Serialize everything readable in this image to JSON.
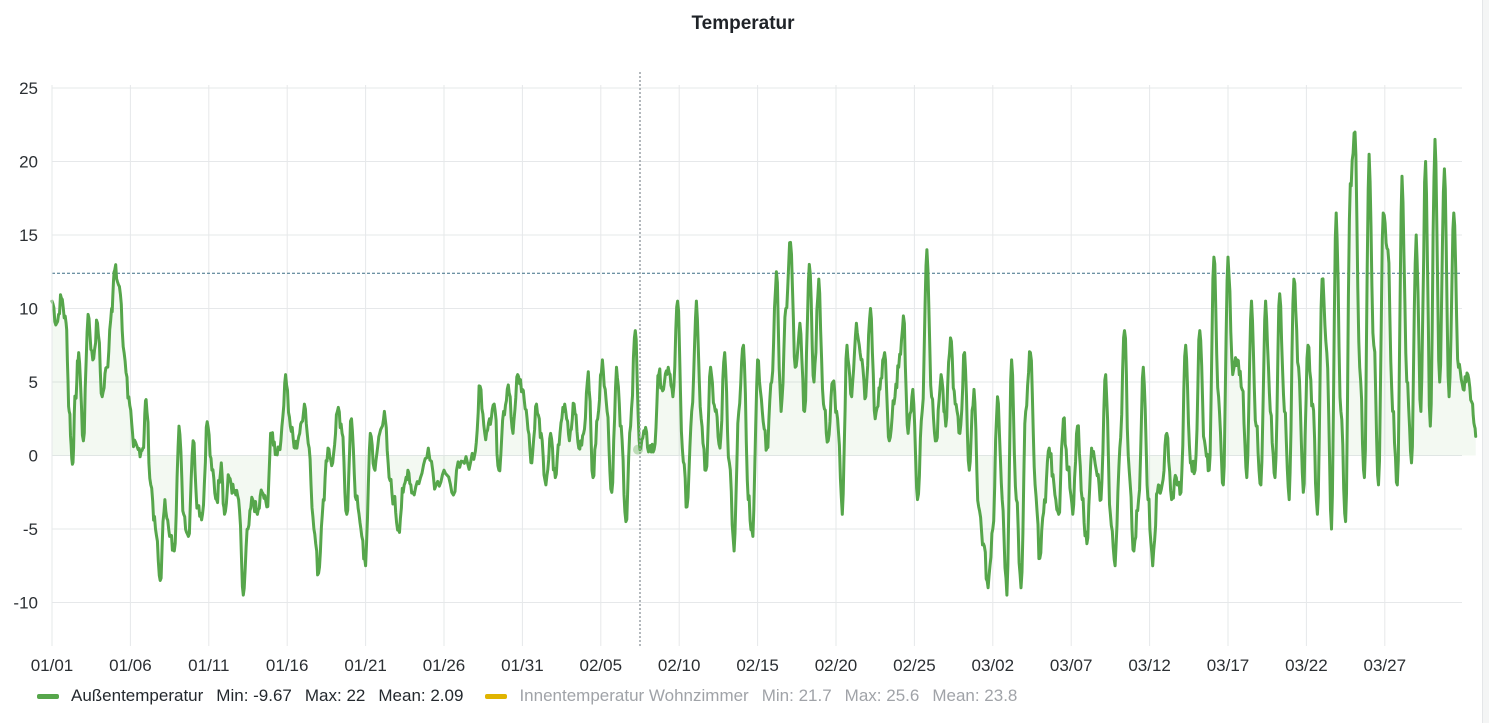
{
  "panel": {
    "title": "Temperatur"
  },
  "legend": [
    {
      "name": "Außentemperatur",
      "color": "#56a64b",
      "min_text": "Min: -9.67",
      "max_text": "Max: 22",
      "mean_text": "Mean: 2.09",
      "active": true
    },
    {
      "name": "Innentemperatur Wohnzimmer",
      "color": "#e0b400",
      "min_text": "Min: 21.7",
      "max_text": "Max: 25.6",
      "mean_text": "Mean: 23.8",
      "active": false
    }
  ],
  "chart_data": {
    "type": "line",
    "x_tick_labels": [
      "01/01",
      "01/06",
      "01/11",
      "01/16",
      "01/21",
      "01/26",
      "01/31",
      "02/05",
      "02/10",
      "02/15",
      "02/20",
      "02/25",
      "03/02",
      "03/07",
      "03/12",
      "03/17",
      "03/22",
      "03/27"
    ],
    "y_tick_labels": [
      "25",
      "20",
      "15",
      "10",
      "5",
      "0",
      "-5",
      "-10"
    ],
    "ylim": [
      -12.2,
      25
    ],
    "xlim_days": [
      0,
      90
    ],
    "threshold_line": 12.4,
    "hover_marker": {
      "day": 37.5,
      "value": 0.4
    },
    "grid": true,
    "series": [
      {
        "name": "Außentemperatur",
        "color": "#56a64b",
        "fill": true,
        "anchors": [
          [
            0.0,
            10.5
          ],
          [
            0.3,
            9.0
          ],
          [
            0.6,
            10.7
          ],
          [
            0.9,
            9.0
          ],
          [
            1.1,
            3.0
          ],
          [
            1.3,
            -0.6
          ],
          [
            1.5,
            4.0
          ],
          [
            1.7,
            7.0
          ],
          [
            2.0,
            1.0
          ],
          [
            2.3,
            9.6
          ],
          [
            2.6,
            6.5
          ],
          [
            2.9,
            9.0
          ],
          [
            3.2,
            4.0
          ],
          [
            3.5,
            6.0
          ],
          [
            3.8,
            10.0
          ],
          [
            4.0,
            12.6
          ],
          [
            4.3,
            11.5
          ],
          [
            4.6,
            7.0
          ],
          [
            4.9,
            4.0
          ],
          [
            5.2,
            0.6
          ],
          [
            5.5,
            0.4
          ],
          [
            5.8,
            0.5
          ],
          [
            6.0,
            3.8
          ],
          [
            6.3,
            -2.0
          ],
          [
            6.6,
            -5.0
          ],
          [
            6.9,
            -8.5
          ],
          [
            7.2,
            -3.0
          ],
          [
            7.5,
            -5.5
          ],
          [
            7.8,
            -6.5
          ],
          [
            8.1,
            2.0
          ],
          [
            8.4,
            -4.0
          ],
          [
            8.7,
            -5.5
          ],
          [
            9.0,
            1.0
          ],
          [
            9.3,
            -3.5
          ],
          [
            9.6,
            -4.0
          ],
          [
            9.9,
            2.3
          ],
          [
            10.2,
            -1.0
          ],
          [
            10.5,
            -3.0
          ],
          [
            10.8,
            -0.5
          ],
          [
            11.0,
            -4.0
          ],
          [
            11.3,
            -1.5
          ],
          [
            11.6,
            -2.5
          ],
          [
            11.9,
            -3.0
          ],
          [
            12.2,
            -9.5
          ],
          [
            12.5,
            -5.0
          ],
          [
            12.8,
            -3.0
          ],
          [
            13.1,
            -4.0
          ],
          [
            13.4,
            -2.5
          ],
          [
            13.7,
            -3.5
          ],
          [
            14.0,
            1.5
          ],
          [
            14.3,
            0.3
          ],
          [
            14.6,
            1.0
          ],
          [
            14.9,
            5.5
          ],
          [
            15.2,
            2.0
          ],
          [
            15.5,
            0.5
          ],
          [
            15.8,
            1.5
          ],
          [
            16.1,
            3.5
          ],
          [
            16.4,
            0.5
          ],
          [
            16.7,
            -5.0
          ],
          [
            17.0,
            -8.0
          ],
          [
            17.3,
            -3.0
          ],
          [
            17.6,
            0.5
          ],
          [
            17.9,
            -0.5
          ],
          [
            18.2,
            3.0
          ],
          [
            18.5,
            1.5
          ],
          [
            18.8,
            -4.0
          ],
          [
            19.1,
            2.5
          ],
          [
            19.4,
            -3.0
          ],
          [
            19.7,
            -5.0
          ],
          [
            20.0,
            -7.5
          ],
          [
            20.3,
            1.5
          ],
          [
            20.6,
            -1.0
          ],
          [
            20.9,
            1.5
          ],
          [
            21.2,
            3.0
          ],
          [
            21.5,
            -1.5
          ],
          [
            21.8,
            -3.0
          ],
          [
            22.1,
            -5.0
          ],
          [
            22.4,
            -2.5
          ],
          [
            22.7,
            -1.0
          ],
          [
            23.0,
            -2.5
          ],
          [
            23.5,
            -1.5
          ],
          [
            24.0,
            0.5
          ],
          [
            24.5,
            -2.0
          ],
          [
            25.0,
            -1.0
          ],
          [
            25.5,
            -2.5
          ],
          [
            26.0,
            -0.8
          ],
          [
            26.5,
            -0.5
          ],
          [
            27.0,
            0.3
          ],
          [
            27.3,
            4.7
          ],
          [
            27.6,
            1.5
          ],
          [
            27.9,
            2.5
          ],
          [
            28.2,
            3.5
          ],
          [
            28.5,
            -1.0
          ],
          [
            28.8,
            3.0
          ],
          [
            29.1,
            4.8
          ],
          [
            29.4,
            1.5
          ],
          [
            29.7,
            5.5
          ],
          [
            30.0,
            4.5
          ],
          [
            30.3,
            2.5
          ],
          [
            30.6,
            -0.5
          ],
          [
            30.9,
            3.5
          ],
          [
            31.2,
            1.5
          ],
          [
            31.5,
            -2.0
          ],
          [
            31.8,
            1.5
          ],
          [
            32.1,
            -1.5
          ],
          [
            32.4,
            1.5
          ],
          [
            32.7,
            3.5
          ],
          [
            33.0,
            1.0
          ],
          [
            33.3,
            3.5
          ],
          [
            33.6,
            0.5
          ],
          [
            33.9,
            1.5
          ],
          [
            34.2,
            5.7
          ],
          [
            34.5,
            -1.5
          ],
          [
            34.8,
            2.5
          ],
          [
            35.1,
            6.5
          ],
          [
            35.4,
            3.0
          ],
          [
            35.7,
            -2.5
          ],
          [
            36.0,
            6.0
          ],
          [
            36.3,
            2.0
          ],
          [
            36.6,
            -4.5
          ],
          [
            36.9,
            2.0
          ],
          [
            37.2,
            8.5
          ],
          [
            37.5,
            0.4
          ],
          [
            37.8,
            1.5
          ],
          [
            38.1,
            0.5
          ],
          [
            38.4,
            0.4
          ],
          [
            38.7,
            5.5
          ],
          [
            39.0,
            4.5
          ],
          [
            39.3,
            6.0
          ],
          [
            39.6,
            4.0
          ],
          [
            39.9,
            10.5
          ],
          [
            40.2,
            0.5
          ],
          [
            40.5,
            -3.5
          ],
          [
            40.8,
            3.0
          ],
          [
            41.1,
            10.5
          ],
          [
            41.4,
            2.5
          ],
          [
            41.7,
            -1.0
          ],
          [
            42.0,
            6.0
          ],
          [
            42.3,
            3.0
          ],
          [
            42.6,
            0.5
          ],
          [
            42.9,
            7.0
          ],
          [
            43.2,
            -0.5
          ],
          [
            43.5,
            -6.5
          ],
          [
            43.8,
            3.0
          ],
          [
            44.1,
            7.5
          ],
          [
            44.4,
            -3.0
          ],
          [
            44.7,
            -5.5
          ],
          [
            45.0,
            6.5
          ],
          [
            45.3,
            3.0
          ],
          [
            45.6,
            0.5
          ],
          [
            45.9,
            5.0
          ],
          [
            46.2,
            12.5
          ],
          [
            46.5,
            3.0
          ],
          [
            46.8,
            10.0
          ],
          [
            47.1,
            14.5
          ],
          [
            47.4,
            6.0
          ],
          [
            47.7,
            9.0
          ],
          [
            48.0,
            3.0
          ],
          [
            48.3,
            13.0
          ],
          [
            48.6,
            5.0
          ],
          [
            48.9,
            12.0
          ],
          [
            49.2,
            3.5
          ],
          [
            49.5,
            1.0
          ],
          [
            49.8,
            5.0
          ],
          [
            50.1,
            2.5
          ],
          [
            50.4,
            -4.0
          ],
          [
            50.7,
            7.5
          ],
          [
            51.0,
            4.0
          ],
          [
            51.3,
            9.0
          ],
          [
            51.6,
            6.5
          ],
          [
            51.9,
            4.0
          ],
          [
            52.2,
            10.0
          ],
          [
            52.5,
            2.5
          ],
          [
            52.8,
            4.5
          ],
          [
            53.1,
            7.0
          ],
          [
            53.4,
            1.0
          ],
          [
            53.7,
            3.5
          ],
          [
            54.0,
            6.0
          ],
          [
            54.3,
            9.5
          ],
          [
            54.6,
            1.5
          ],
          [
            54.9,
            4.5
          ],
          [
            55.2,
            -3.0
          ],
          [
            55.5,
            3.0
          ],
          [
            55.8,
            14.0
          ],
          [
            56.1,
            4.0
          ],
          [
            56.4,
            1.0
          ],
          [
            56.7,
            5.5
          ],
          [
            57.0,
            2.0
          ],
          [
            57.3,
            8.0
          ],
          [
            57.6,
            3.5
          ],
          [
            57.9,
            1.5
          ],
          [
            58.2,
            7.0
          ],
          [
            58.5,
            -1.0
          ],
          [
            58.8,
            4.5
          ],
          [
            59.1,
            -3.5
          ],
          [
            59.4,
            -6.0
          ],
          [
            59.7,
            -9.0
          ],
          [
            60.0,
            -5.0
          ],
          [
            60.3,
            4.0
          ],
          [
            60.6,
            -3.0
          ],
          [
            60.9,
            -9.5
          ],
          [
            61.2,
            6.5
          ],
          [
            61.5,
            -3.0
          ],
          [
            61.8,
            -9.0
          ],
          [
            62.1,
            3.0
          ],
          [
            62.4,
            7.0
          ],
          [
            62.7,
            -2.0
          ],
          [
            63.0,
            -7.0
          ],
          [
            63.3,
            -3.0
          ],
          [
            63.6,
            0.5
          ],
          [
            63.9,
            -2.0
          ],
          [
            64.2,
            -4.0
          ],
          [
            64.5,
            2.5
          ],
          [
            64.8,
            -1.0
          ],
          [
            65.1,
            -4.0
          ],
          [
            65.4,
            2.0
          ],
          [
            65.7,
            -3.0
          ],
          [
            66.0,
            -6.0
          ],
          [
            66.3,
            0.5
          ],
          [
            66.6,
            -1.0
          ],
          [
            66.9,
            -3.0
          ],
          [
            67.2,
            5.5
          ],
          [
            67.5,
            -4.0
          ],
          [
            67.8,
            -7.5
          ],
          [
            68.1,
            0.5
          ],
          [
            68.4,
            8.5
          ],
          [
            68.7,
            -1.0
          ],
          [
            69.0,
            -6.5
          ],
          [
            69.3,
            -3.0
          ],
          [
            69.6,
            6.0
          ],
          [
            69.9,
            -3.0
          ],
          [
            70.2,
            -7.5
          ],
          [
            70.5,
            -2.5
          ],
          [
            70.8,
            -2.0
          ],
          [
            71.1,
            1.5
          ],
          [
            71.4,
            -3.0
          ],
          [
            71.7,
            -1.5
          ],
          [
            72.0,
            -2.5
          ],
          [
            72.3,
            7.5
          ],
          [
            72.6,
            -0.5
          ],
          [
            72.9,
            -1.0
          ],
          [
            73.2,
            8.5
          ],
          [
            73.5,
            1.0
          ],
          [
            73.8,
            -1.0
          ],
          [
            74.1,
            13.5
          ],
          [
            74.4,
            4.0
          ],
          [
            74.7,
            -2.0
          ],
          [
            75.0,
            13.5
          ],
          [
            75.3,
            5.5
          ],
          [
            75.6,
            6.5
          ],
          [
            75.9,
            4.5
          ],
          [
            76.2,
            -1.5
          ],
          [
            76.5,
            10.5
          ],
          [
            76.8,
            2.0
          ],
          [
            77.1,
            -2.0
          ],
          [
            77.4,
            10.5
          ],
          [
            77.7,
            3.0
          ],
          [
            78.0,
            -1.5
          ],
          [
            78.3,
            11.0
          ],
          [
            78.6,
            3.0
          ],
          [
            78.9,
            -3.0
          ],
          [
            79.2,
            12.0
          ],
          [
            79.5,
            6.0
          ],
          [
            79.8,
            -2.5
          ],
          [
            80.1,
            7.5
          ],
          [
            80.4,
            3.5
          ],
          [
            80.7,
            -4.0
          ],
          [
            81.0,
            12.0
          ],
          [
            81.3,
            7.0
          ],
          [
            81.6,
            -5.0
          ],
          [
            81.9,
            16.5
          ],
          [
            82.2,
            3.0
          ],
          [
            82.5,
            -4.5
          ],
          [
            82.8,
            18.5
          ],
          [
            83.1,
            22.0
          ],
          [
            83.4,
            6.0
          ],
          [
            83.7,
            -1.5
          ],
          [
            84.0,
            20.5
          ],
          [
            84.3,
            7.5
          ],
          [
            84.6,
            -2.0
          ],
          [
            84.9,
            16.5
          ],
          [
            85.2,
            14.0
          ],
          [
            85.5,
            3.0
          ],
          [
            85.8,
            -2.0
          ],
          [
            86.1,
            19.0
          ],
          [
            86.4,
            5.0
          ],
          [
            86.7,
            -0.5
          ],
          [
            87.0,
            15.0
          ],
          [
            87.3,
            3.0
          ],
          [
            87.6,
            20.0
          ],
          [
            87.9,
            2.0
          ],
          [
            88.2,
            21.5
          ],
          [
            88.5,
            5.0
          ],
          [
            88.8,
            19.5
          ],
          [
            89.1,
            4.0
          ],
          [
            89.4,
            16.5
          ],
          [
            89.7,
            6.0
          ],
          [
            90.0,
            4.5
          ],
          [
            90.3,
            5.5
          ],
          [
            90.6,
            3.5
          ],
          [
            90.8,
            1.3
          ]
        ]
      }
    ]
  }
}
